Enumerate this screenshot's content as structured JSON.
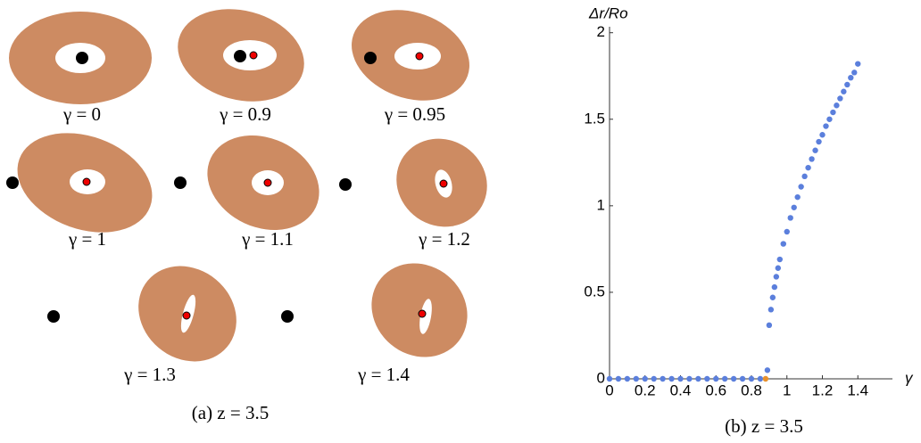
{
  "shapes_panel": {
    "labels": [
      "γ = 0",
      "γ = 0.9",
      "γ = 0.95",
      "γ = 1",
      "γ = 1.1",
      "γ = 1.2",
      "γ = 1.3",
      "γ = 1.4"
    ],
    "caption": "(a) z = 3.5"
  },
  "chart_data": {
    "type": "scatter",
    "x_label": "γ",
    "y_label": "Δr/Ro",
    "caption": "(b) z = 3.5",
    "xlim": [
      0,
      1.6
    ],
    "ylim": [
      0,
      2.05
    ],
    "xticks": [
      0,
      0.2,
      0.4,
      0.6,
      0.8,
      1,
      1.2,
      1.4
    ],
    "yticks": [
      0,
      0.5,
      1,
      1.5,
      2
    ],
    "series": [
      {
        "color": "#5b7fdc",
        "x": [
          0,
          0.05,
          0.1,
          0.15,
          0.2,
          0.25,
          0.3,
          0.35,
          0.4,
          0.45,
          0.5,
          0.55,
          0.6,
          0.65,
          0.7,
          0.75,
          0.8,
          0.85,
          0.89,
          0.9,
          0.91,
          0.92,
          0.93,
          0.94,
          0.95,
          0.96,
          0.98,
          1.0,
          1.02,
          1.04,
          1.06,
          1.08,
          1.1,
          1.12,
          1.14,
          1.16,
          1.18,
          1.2,
          1.22,
          1.24,
          1.26,
          1.28,
          1.3,
          1.32,
          1.34,
          1.36,
          1.38,
          1.4
        ],
        "values": [
          0,
          0,
          0,
          0,
          0,
          0,
          0,
          0,
          0,
          0,
          0,
          0,
          0,
          0,
          0,
          0,
          0,
          0,
          0.05,
          0.31,
          0.4,
          0.47,
          0.53,
          0.59,
          0.64,
          0.69,
          0.78,
          0.85,
          0.93,
          0.99,
          1.05,
          1.11,
          1.17,
          1.22,
          1.27,
          1.32,
          1.37,
          1.41,
          1.46,
          1.5,
          1.54,
          1.58,
          1.62,
          1.66,
          1.7,
          1.74,
          1.77,
          1.82
        ]
      },
      {
        "color": "#e8912d",
        "x": [
          0.88
        ],
        "values": [
          0
        ]
      }
    ]
  }
}
